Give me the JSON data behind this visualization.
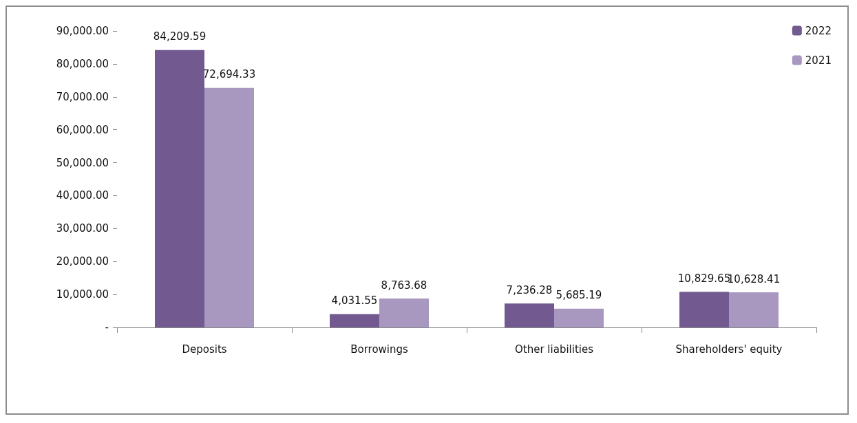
{
  "chart_data": {
    "type": "bar",
    "categories": [
      "Deposits",
      "Borrowings",
      "Other liabilities",
      "Shareholders' equity"
    ],
    "series": [
      {
        "name": "2022",
        "color": "#725a91",
        "values": [
          84209.59,
          4031.55,
          7236.28,
          10829.65
        ],
        "value_labels": [
          "84,209.59",
          "4,031.55",
          "7,236.28",
          "10,829.65"
        ]
      },
      {
        "name": "2021",
        "color": "#a898c0",
        "values": [
          72694.33,
          8763.68,
          5685.19,
          10628.41
        ],
        "value_labels": [
          "72,694.33",
          "8,763.68",
          "5,685.19",
          "10,628.41"
        ]
      }
    ],
    "ylim": [
      0,
      90000
    ],
    "yticks": [
      {
        "value": 0,
        "label": "-"
      },
      {
        "value": 10000,
        "label": "10,000.00"
      },
      {
        "value": 20000,
        "label": "20,000.00"
      },
      {
        "value": 30000,
        "label": "30,000.00"
      },
      {
        "value": 40000,
        "label": "40,000.00"
      },
      {
        "value": 50000,
        "label": "50,000.00"
      },
      {
        "value": 60000,
        "label": "60,000.00"
      },
      {
        "value": 70000,
        "label": "70,000.00"
      },
      {
        "value": 80000,
        "label": "80,000.00"
      },
      {
        "value": 90000,
        "label": "90,000.00"
      }
    ],
    "grid": false,
    "legend": "top right"
  }
}
